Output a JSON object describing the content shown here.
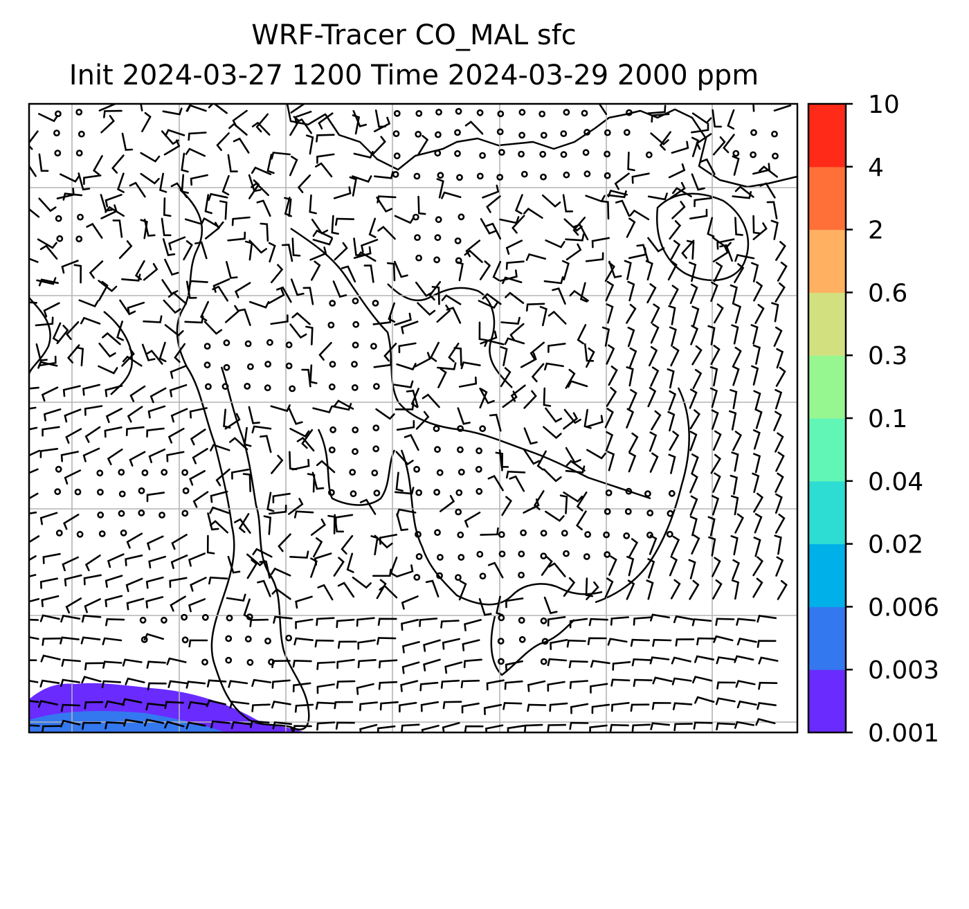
{
  "title": {
    "line1": "WRF-Tracer CO_MAL sfc",
    "line2": "Init 2024-03-27 1200 Time 2024-03-29 2000 ppm"
  },
  "colorbar": {
    "levels": [
      "0.001",
      "0.003",
      "0.006",
      "0.02",
      "0.04",
      "0.1",
      "0.3",
      "0.6",
      "2",
      "4",
      "10"
    ],
    "colors": [
      "#6a2bff",
      "#3478f0",
      "#00b0e8",
      "#2ddcd2",
      "#62f6b6",
      "#96f690",
      "#d2e080",
      "#ffb060",
      "#ff7038",
      "#ff2a18"
    ]
  },
  "map": {
    "field": "CO_MAL surface tracer concentration",
    "overlay": "wind barbs",
    "gridlines": true,
    "colors": {
      "coastline": "#000000",
      "gridline": "#b4b4b4",
      "barb": "#000000"
    }
  }
}
